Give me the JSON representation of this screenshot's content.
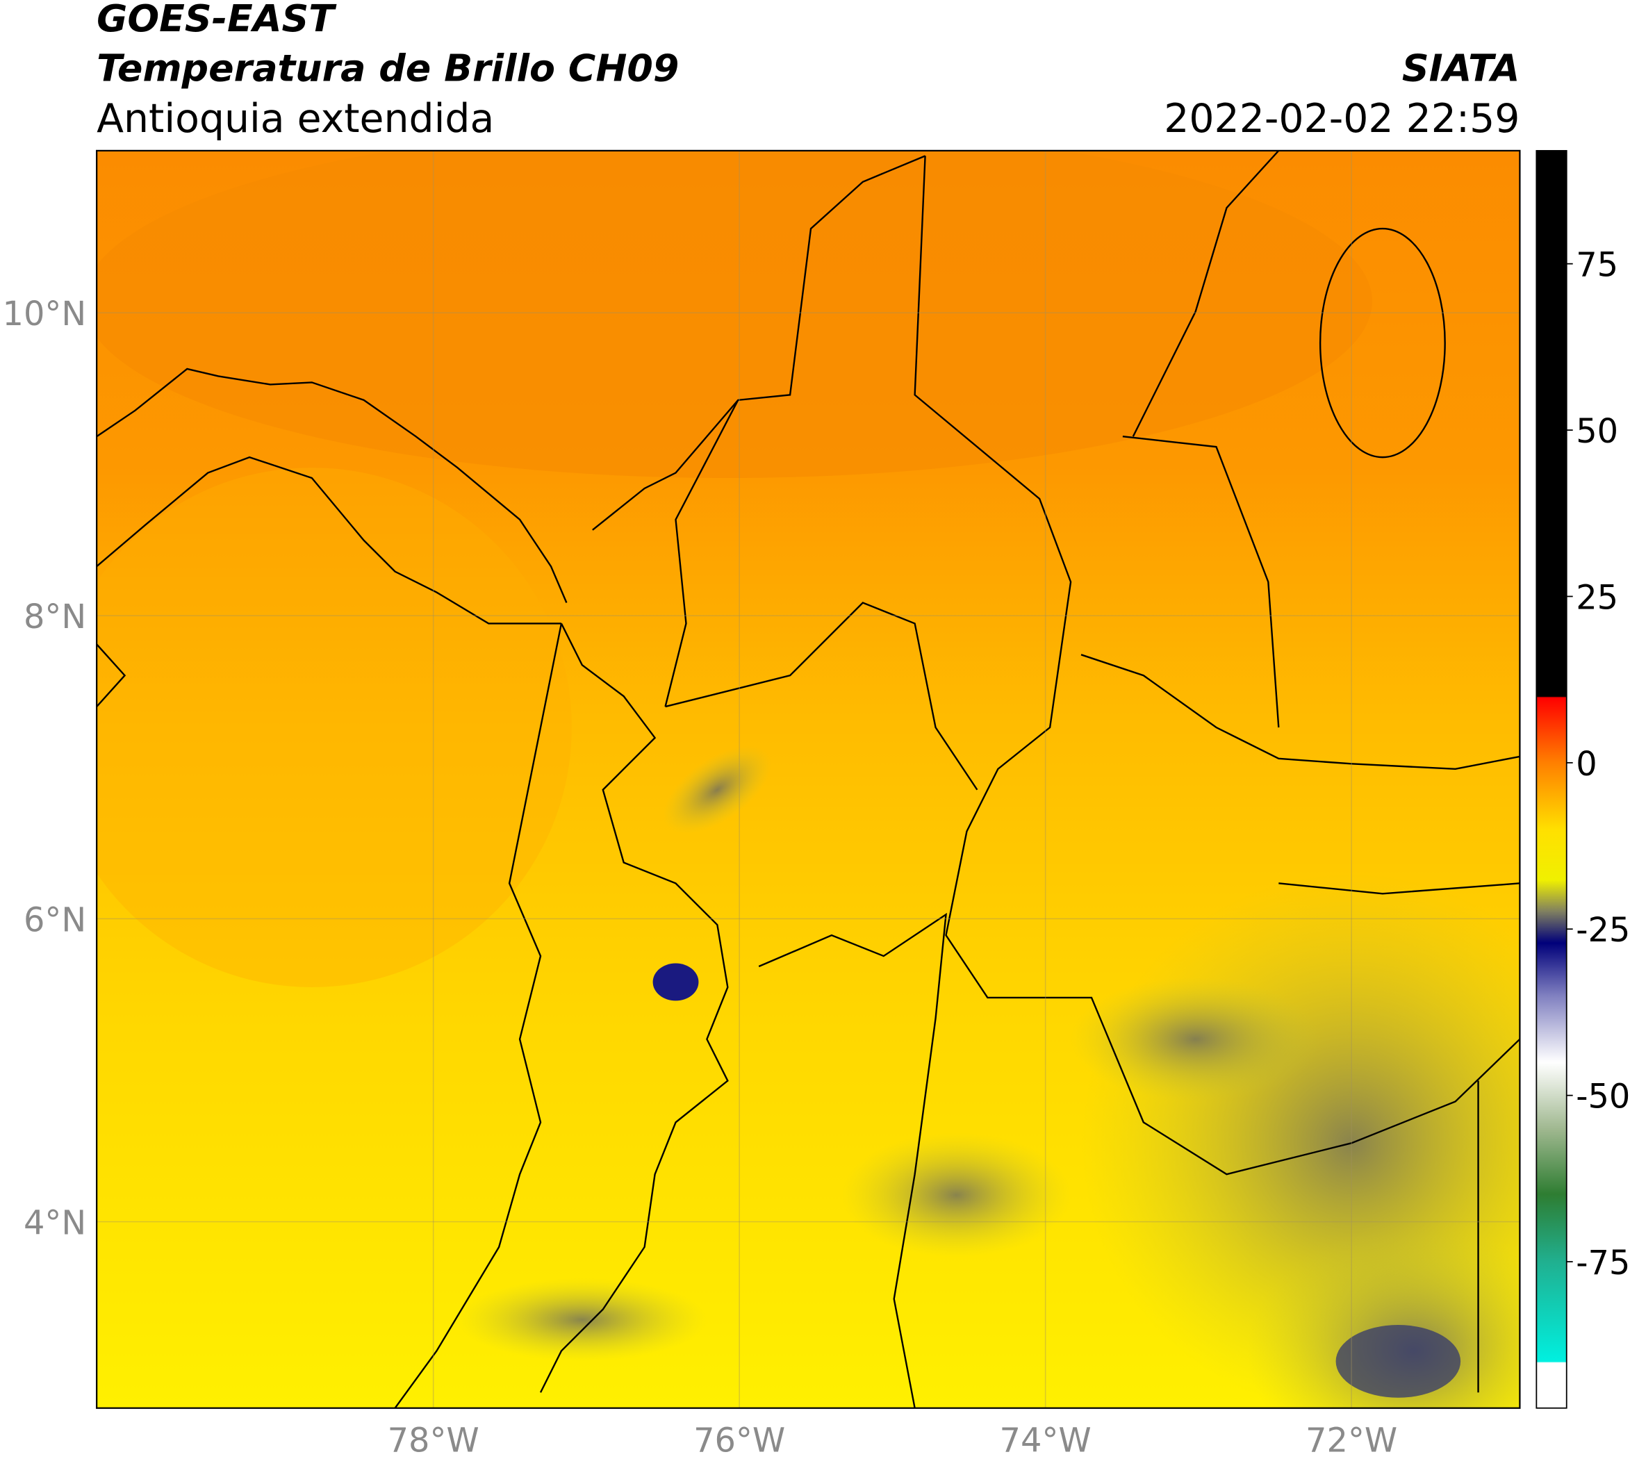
{
  "header": {
    "title_line1": "GOES-EAST",
    "title_line2": "Temperatura de Brillo CH09",
    "subtitle": "Antioquia extendida",
    "org": "SIATA",
    "datetime": "2022-02-02 22:59"
  },
  "map": {
    "lonlim": [
      -80.2,
      -70.9
    ],
    "latlim": [
      2.77,
      11.07
    ],
    "lonticks": [
      {
        "value": -78,
        "label": "78°W"
      },
      {
        "value": -76,
        "label": "76°W"
      },
      {
        "value": -74,
        "label": "74°W"
      },
      {
        "value": -72,
        "label": "72°W"
      }
    ],
    "latticks": [
      {
        "value": 4,
        "label": "4°N"
      },
      {
        "value": 6,
        "label": "6°N"
      },
      {
        "value": 8,
        "label": "8°N"
      },
      {
        "value": 10,
        "label": "10°N"
      }
    ],
    "grid": true
  },
  "colorbar": {
    "range": [
      -97,
      92
    ],
    "ticks": [
      75,
      50,
      25,
      0,
      -25,
      -50,
      -75
    ]
  }
}
